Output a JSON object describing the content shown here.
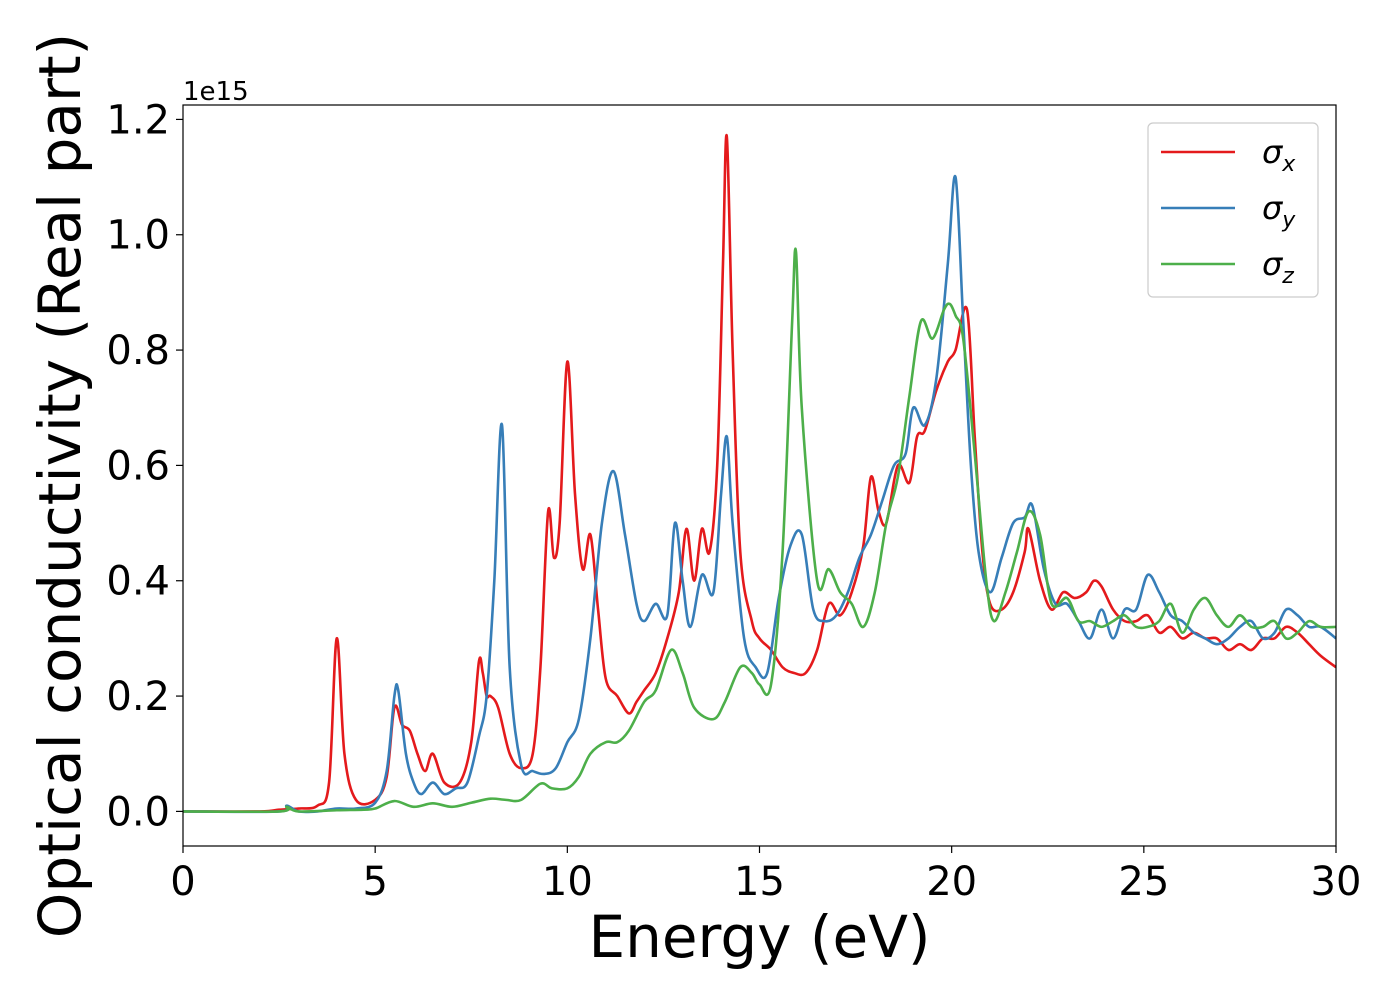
{
  "chart_data": {
    "type": "line",
    "xlabel": "Energy (eV)",
    "ylabel": "Optical conductivity (Real part)",
    "y_offset_label": "1e15",
    "xlim": [
      0,
      30
    ],
    "ylim": [
      -0.06,
      1.225
    ],
    "xticks": [
      0,
      5,
      10,
      15,
      20,
      25,
      30
    ],
    "xtick_labels": [
      "0",
      "5",
      "10",
      "15",
      "20",
      "25",
      "30"
    ],
    "yticks": [
      0.0,
      0.2,
      0.4,
      0.6,
      0.8,
      1.0,
      1.2
    ],
    "ytick_labels": [
      "0.0",
      "0.2",
      "0.4",
      "0.6",
      "0.8",
      "1.0",
      "1.2"
    ],
    "grid": false,
    "legend_position": "top-right",
    "series": [
      {
        "name": "σx",
        "symbol": "σ",
        "subscript": "x",
        "color": "#e41a1c",
        "x": [
          0,
          2,
          2.5,
          3,
          3.5,
          3.8,
          4,
          4.2,
          4.5,
          5,
          5.3,
          5.5,
          5.7,
          5.9,
          6.1,
          6.3,
          6.5,
          6.8,
          7.2,
          7.5,
          7.7,
          7.8,
          7.9,
          8,
          8.2,
          8.5,
          8.8,
          9.1,
          9.3,
          9.5,
          9.65,
          9.8,
          10,
          10.2,
          10.4,
          10.6,
          10.8,
          11,
          11.3,
          11.6,
          11.8,
          12,
          12.3,
          12.6,
          12.9,
          13.1,
          13.3,
          13.5,
          13.7,
          13.9,
          14.05,
          14.15,
          14.3,
          14.5,
          14.8,
          15,
          15.3,
          15.6,
          15.9,
          16.2,
          16.5,
          16.8,
          17.1,
          17.4,
          17.7,
          17.9,
          18.1,
          18.3,
          18.6,
          18.9,
          19.1,
          19.3,
          19.6,
          19.9,
          20.1,
          20.4,
          20.6,
          20.8,
          21,
          21.3,
          21.6,
          21.9,
          22,
          22.3,
          22.6,
          22.9,
          23.2,
          23.5,
          23.7,
          23.9,
          24.2,
          24.5,
          24.8,
          25.1,
          25.4,
          25.7,
          26,
          26.3,
          26.6,
          26.9,
          27.2,
          27.5,
          27.8,
          28.1,
          28.4,
          28.7,
          29,
          29.3,
          29.6,
          30
        ],
        "values": [
          0,
          0,
          0.003,
          0.005,
          0.01,
          0.05,
          0.3,
          0.1,
          0.02,
          0.02,
          0.06,
          0.18,
          0.15,
          0.14,
          0.1,
          0.07,
          0.1,
          0.05,
          0.05,
          0.12,
          0.26,
          0.24,
          0.2,
          0.2,
          0.18,
          0.1,
          0.075,
          0.1,
          0.25,
          0.52,
          0.44,
          0.5,
          0.78,
          0.55,
          0.42,
          0.48,
          0.35,
          0.23,
          0.2,
          0.17,
          0.19,
          0.21,
          0.24,
          0.3,
          0.38,
          0.49,
          0.4,
          0.49,
          0.45,
          0.6,
          0.95,
          1.17,
          0.8,
          0.45,
          0.33,
          0.3,
          0.28,
          0.25,
          0.24,
          0.24,
          0.28,
          0.36,
          0.34,
          0.38,
          0.46,
          0.58,
          0.52,
          0.5,
          0.6,
          0.57,
          0.65,
          0.66,
          0.73,
          0.78,
          0.8,
          0.87,
          0.65,
          0.45,
          0.36,
          0.35,
          0.38,
          0.45,
          0.49,
          0.4,
          0.35,
          0.38,
          0.37,
          0.38,
          0.4,
          0.39,
          0.35,
          0.33,
          0.33,
          0.34,
          0.31,
          0.32,
          0.3,
          0.31,
          0.3,
          0.3,
          0.28,
          0.29,
          0.28,
          0.3,
          0.3,
          0.32,
          0.31,
          0.29,
          0.27,
          0.25
        ]
      },
      {
        "name": "σy",
        "symbol": "σ",
        "subscript": "y",
        "color": "#377eb8",
        "x": [
          0,
          2.5,
          2.7,
          3,
          3.5,
          4,
          4.5,
          5,
          5.3,
          5.5,
          5.6,
          5.8,
          6,
          6.2,
          6.5,
          6.8,
          7.1,
          7.4,
          7.7,
          7.9,
          8.1,
          8.3,
          8.5,
          8.8,
          9.1,
          9.4,
          9.7,
          10,
          10.3,
          10.6,
          10.9,
          11.2,
          11.5,
          11.8,
          12,
          12.3,
          12.6,
          12.8,
          13,
          13.2,
          13.5,
          13.8,
          14,
          14.15,
          14.3,
          14.6,
          14.9,
          15.2,
          15.5,
          15.8,
          16.1,
          16.4,
          16.7,
          17,
          17.3,
          17.6,
          17.9,
          18.2,
          18.5,
          18.8,
          19,
          19.3,
          19.6,
          19.9,
          20.1,
          20.3,
          20.5,
          20.7,
          21,
          21.3,
          21.6,
          21.9,
          22.1,
          22.4,
          22.7,
          23,
          23.3,
          23.6,
          23.9,
          24.2,
          24.5,
          24.8,
          25.1,
          25.4,
          25.7,
          26,
          26.3,
          26.6,
          26.9,
          27.2,
          27.5,
          27.8,
          28.1,
          28.4,
          28.7,
          29,
          29.3,
          29.6,
          30
        ],
        "values": [
          0,
          0,
          0.01,
          0,
          0,
          0.005,
          0.005,
          0.015,
          0.07,
          0.2,
          0.21,
          0.1,
          0.05,
          0.03,
          0.05,
          0.03,
          0.04,
          0.05,
          0.13,
          0.2,
          0.4,
          0.67,
          0.25,
          0.08,
          0.07,
          0.065,
          0.075,
          0.12,
          0.16,
          0.3,
          0.5,
          0.59,
          0.48,
          0.36,
          0.33,
          0.36,
          0.34,
          0.5,
          0.4,
          0.32,
          0.41,
          0.38,
          0.55,
          0.65,
          0.5,
          0.3,
          0.25,
          0.24,
          0.37,
          0.46,
          0.48,
          0.35,
          0.33,
          0.34,
          0.38,
          0.44,
          0.48,
          0.54,
          0.6,
          0.62,
          0.7,
          0.67,
          0.75,
          0.95,
          1.1,
          0.85,
          0.6,
          0.45,
          0.38,
          0.44,
          0.5,
          0.51,
          0.53,
          0.42,
          0.36,
          0.36,
          0.33,
          0.3,
          0.35,
          0.3,
          0.35,
          0.35,
          0.41,
          0.38,
          0.34,
          0.33,
          0.31,
          0.3,
          0.29,
          0.3,
          0.32,
          0.33,
          0.3,
          0.31,
          0.35,
          0.34,
          0.32,
          0.32,
          0.3
        ]
      },
      {
        "name": "σz",
        "symbol": "σ",
        "subscript": "z",
        "color": "#4daf4a",
        "x": [
          0,
          2.5,
          2.7,
          3,
          4,
          4.7,
          5,
          5.5,
          6,
          6.5,
          7,
          7.5,
          8,
          8.4,
          8.8,
          9.3,
          9.6,
          10,
          10.3,
          10.6,
          11,
          11.3,
          11.6,
          12,
          12.3,
          12.7,
          13,
          13.3,
          13.8,
          14.1,
          14.5,
          14.8,
          15,
          15.3,
          15.6,
          15.85,
          15.95,
          16.1,
          16.5,
          16.8,
          17.1,
          17.4,
          17.7,
          18,
          18.3,
          18.6,
          18.9,
          19.2,
          19.5,
          19.8,
          19.95,
          20.1,
          20.3,
          20.6,
          20.9,
          21.1,
          21.4,
          21.7,
          22,
          22.3,
          22.6,
          23,
          23.3,
          23.6,
          23.9,
          24.2,
          24.5,
          24.8,
          25.1,
          25.4,
          25.7,
          26,
          26.3,
          26.6,
          26.9,
          27.2,
          27.5,
          27.8,
          28.1,
          28.4,
          28.7,
          29,
          29.3,
          29.6,
          30
        ],
        "values": [
          0,
          0,
          0.008,
          0,
          0.002,
          0.003,
          0.005,
          0.018,
          0.008,
          0.014,
          0.008,
          0.015,
          0.022,
          0.02,
          0.02,
          0.048,
          0.04,
          0.04,
          0.06,
          0.1,
          0.12,
          0.12,
          0.14,
          0.19,
          0.21,
          0.28,
          0.24,
          0.18,
          0.16,
          0.19,
          0.25,
          0.24,
          0.22,
          0.22,
          0.45,
          0.85,
          0.97,
          0.7,
          0.4,
          0.42,
          0.38,
          0.36,
          0.32,
          0.38,
          0.5,
          0.58,
          0.72,
          0.85,
          0.82,
          0.87,
          0.88,
          0.86,
          0.82,
          0.62,
          0.4,
          0.33,
          0.38,
          0.45,
          0.52,
          0.48,
          0.36,
          0.37,
          0.33,
          0.33,
          0.32,
          0.33,
          0.34,
          0.32,
          0.32,
          0.33,
          0.36,
          0.31,
          0.35,
          0.37,
          0.34,
          0.32,
          0.34,
          0.32,
          0.32,
          0.33,
          0.3,
          0.31,
          0.33,
          0.32,
          0.32
        ]
      }
    ]
  }
}
